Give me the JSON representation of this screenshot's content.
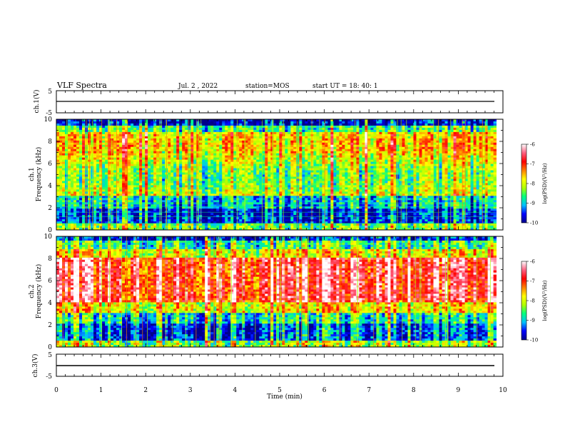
{
  "header": {
    "title": "VLF Spectra",
    "date": "Jul. 2 , 2022",
    "station": "station=MOS",
    "start_ut": "start UT =  18: 40: 1"
  },
  "chart_data": [
    {
      "type": "line",
      "name_panel": "ch1-waveform",
      "ylabel": "ch.1(V)",
      "ylim": [
        -5,
        5
      ],
      "y_tick_labels": [
        "5",
        "-5"
      ],
      "xlim": [
        0,
        10
      ],
      "baseline_value": 0
    },
    {
      "type": "heatmap",
      "name_panel": "ch1-spectrogram",
      "ylabel": "ch.1\nFrequency (kHz)",
      "ylabel_lines": [
        "ch.1",
        "Frequency (kHz)"
      ],
      "ylim": [
        0,
        10
      ],
      "y_ticks": [
        0,
        2,
        4,
        6,
        8,
        10
      ],
      "y_tick_labels": [
        "0",
        "2",
        "4",
        "6",
        "8",
        "10"
      ],
      "xlim": [
        0,
        9.85
      ],
      "colorbar": {
        "label": "log(PSD)(V²/Hz)",
        "range": [
          -10,
          -6
        ],
        "tick_labels": [
          "-6",
          "-7",
          "-8",
          "-9",
          "-10"
        ],
        "colors": [
          "#00008a",
          "#0000ff",
          "#00c0ff",
          "#00ff80",
          "#b0ff00",
          "#ffff00",
          "#ff8000",
          "#ff0000",
          "#ff6080",
          "#ffffff"
        ]
      }
    },
    {
      "type": "heatmap",
      "name_panel": "ch2-spectrogram",
      "ylabel": "ch.2\nFrequency (kHz)",
      "ylabel_lines": [
        "ch.2",
        "Frequency (kHz)"
      ],
      "ylim": [
        0,
        10
      ],
      "y_ticks": [
        0,
        2,
        4,
        6,
        8,
        10
      ],
      "y_tick_labels": [
        "0",
        "2",
        "4",
        "6",
        "8",
        "10"
      ],
      "xlim": [
        0,
        9.85
      ],
      "colorbar": {
        "label": "log(PSD)(V²/Hz)",
        "range": [
          -10,
          -6
        ],
        "tick_labels": [
          "-6",
          "-7",
          "-8",
          "-9",
          "-10"
        ],
        "colors": [
          "#00008a",
          "#0000ff",
          "#00c0ff",
          "#00ff80",
          "#b0ff00",
          "#ffff00",
          "#ff8000",
          "#ff0000",
          "#ff6080",
          "#ffffff"
        ]
      }
    },
    {
      "type": "line",
      "name_panel": "ch3-waveform",
      "ylabel": "ch.3(V)",
      "ylim": [
        -5,
        5
      ],
      "y_tick_labels": [
        "5",
        "-5"
      ],
      "xlim": [
        0,
        10
      ],
      "baseline_value": 0
    }
  ],
  "x_axis": {
    "label": "Time (min)",
    "range": [
      0,
      10
    ],
    "ticks": [
      0,
      1,
      2,
      3,
      4,
      5,
      6,
      7,
      8,
      9,
      10
    ],
    "tick_labels": [
      "0",
      "1",
      "2",
      "3",
      "4",
      "5",
      "6",
      "7",
      "8",
      "9",
      "10"
    ]
  }
}
